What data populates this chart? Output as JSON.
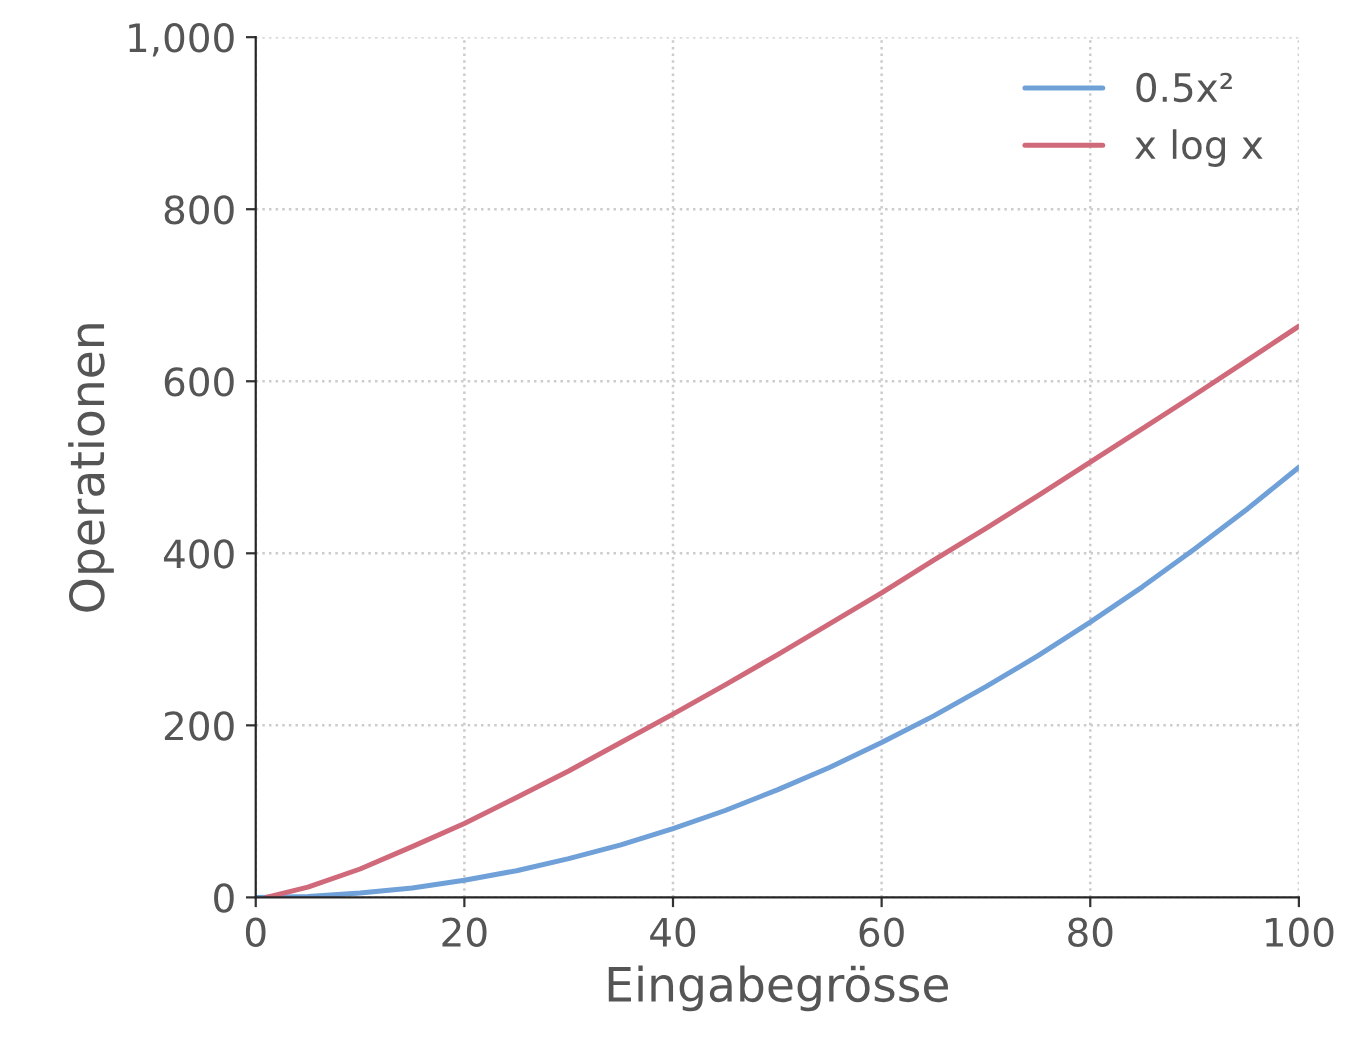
{
  "chart_data": {
    "type": "line",
    "xlabel": "Eingabegrösse",
    "ylabel": "Operationen",
    "series": [
      {
        "name": "0.5x²",
        "color": "#6fa0d8",
        "x": [
          0,
          5,
          10,
          15,
          20,
          25,
          30,
          35,
          40,
          45,
          50,
          55,
          60,
          65,
          70,
          75,
          80,
          85,
          90,
          95,
          100
        ],
        "values": [
          0,
          1,
          5,
          11,
          20,
          31,
          45,
          61,
          80,
          101,
          125,
          151,
          180,
          211,
          245,
          281,
          320,
          361,
          405,
          451,
          500
        ]
      },
      {
        "name": "x log x",
        "color": "#d06a7a",
        "x": [
          1,
          5,
          10,
          15,
          20,
          25,
          30,
          35,
          40,
          45,
          50,
          55,
          60,
          65,
          70,
          75,
          80,
          85,
          90,
          95,
          100
        ],
        "values": [
          0,
          12,
          33,
          59,
          86,
          116,
          147,
          180,
          213,
          247,
          282,
          318,
          354,
          392,
          429,
          467,
          506,
          545,
          584,
          624,
          664
        ]
      }
    ],
    "xlim": [
      0,
      100
    ],
    "xticks": [
      0,
      20,
      40,
      60,
      80,
      100
    ],
    "ylim": [
      0,
      1000
    ],
    "yticks": [
      0,
      200,
      400,
      600,
      800,
      {
        "value": 1000,
        "label": "1,000"
      }
    ],
    "grid": true,
    "legend": "top right",
    "marker": "none",
    "line_style": "solid"
  }
}
